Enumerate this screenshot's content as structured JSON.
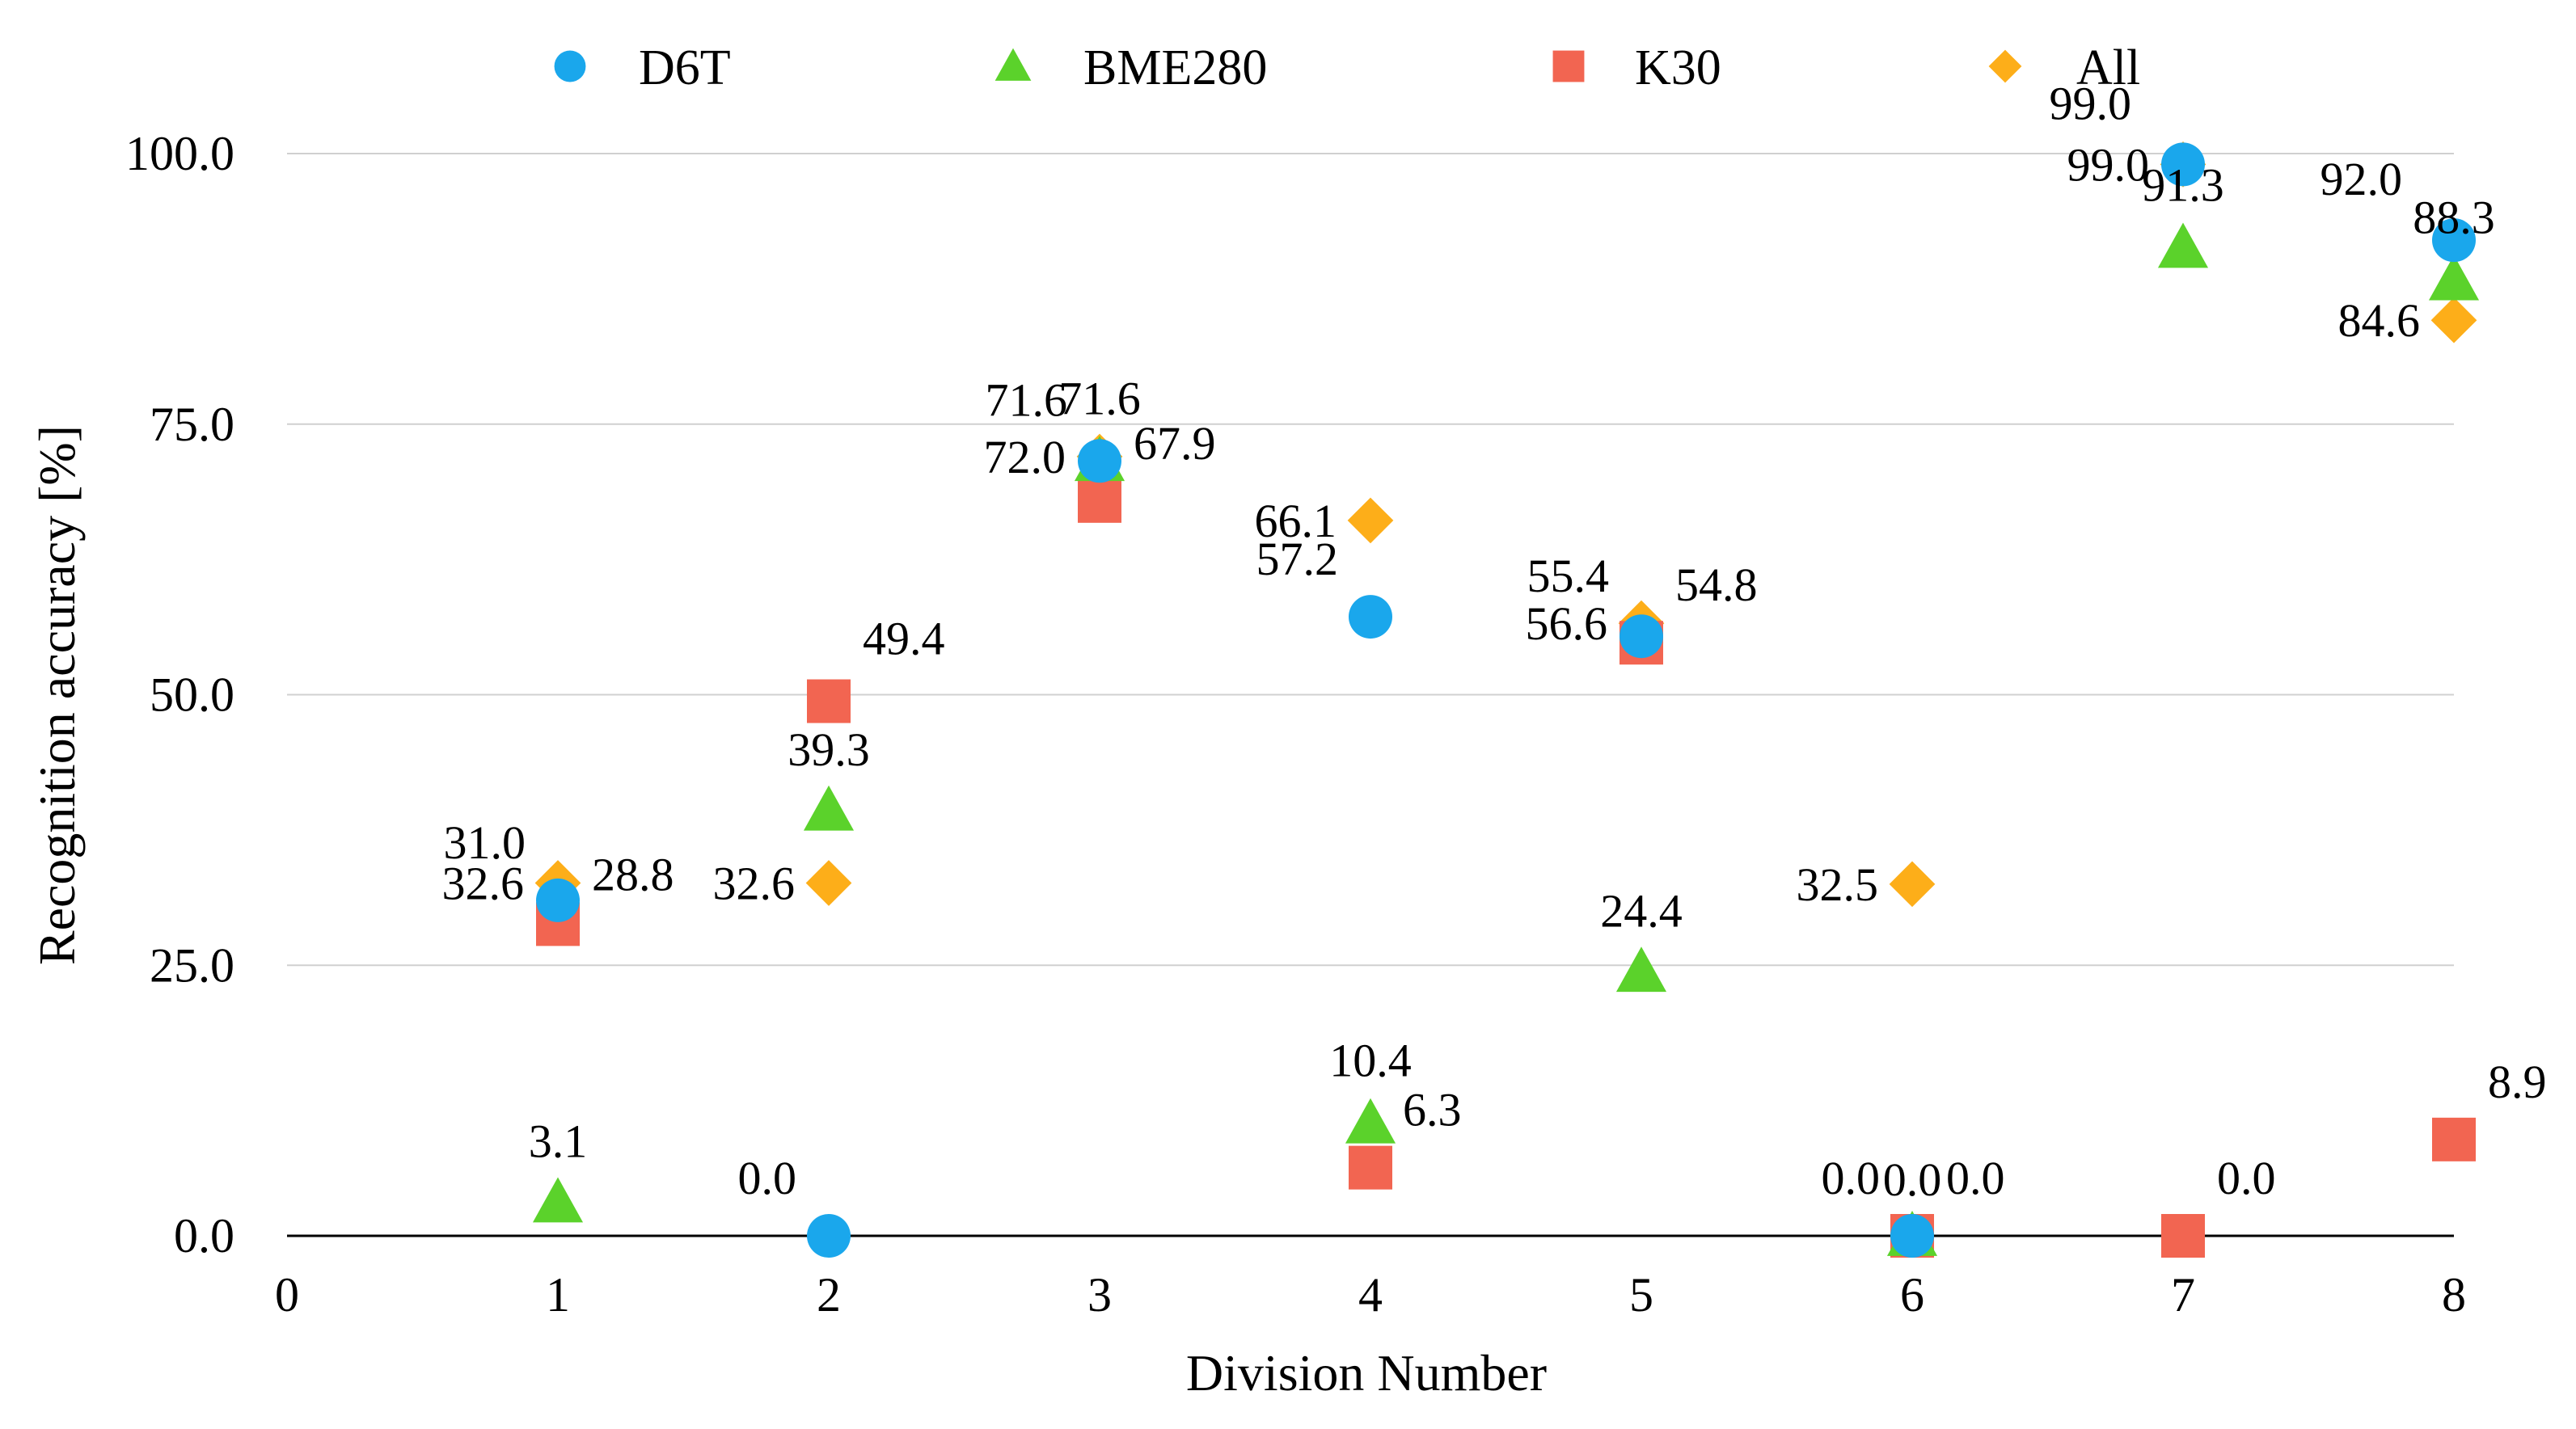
{
  "chart_data": {
    "type": "scatter",
    "title": "",
    "xlabel": "Division Number",
    "ylabel": "Recognition accuracy [%]",
    "xlim": [
      0,
      8
    ],
    "ylim": [
      0,
      100
    ],
    "x_ticks": [
      "0",
      "1",
      "2",
      "3",
      "4",
      "5",
      "6",
      "7",
      "8"
    ],
    "y_ticks": [
      "0.0",
      "25.0",
      "50.0",
      "75.0",
      "100.0"
    ],
    "grid": "horizontal",
    "legend_position": "top",
    "series": [
      {
        "name": "D6T",
        "marker": "circle",
        "color": "#1AA7EC",
        "points": [
          {
            "x": 1,
            "y": 31.0
          },
          {
            "x": 2,
            "y": 0.0
          },
          {
            "x": 3,
            "y": 71.6
          },
          {
            "x": 4,
            "y": 57.2
          },
          {
            "x": 5,
            "y": 55.4
          },
          {
            "x": 6,
            "y": 0.0
          },
          {
            "x": 7,
            "y": 99.0
          },
          {
            "x": 8,
            "y": 92.0
          }
        ]
      },
      {
        "name": "BME280",
        "marker": "triangle",
        "color": "#5BD22B",
        "points": [
          {
            "x": 1,
            "y": 3.1
          },
          {
            "x": 2,
            "y": 39.3
          },
          {
            "x": 3,
            "y": 71.6
          },
          {
            "x": 4,
            "y": 10.4
          },
          {
            "x": 5,
            "y": 24.4
          },
          {
            "x": 6,
            "y": 0.0
          },
          {
            "x": 7,
            "y": 91.3
          },
          {
            "x": 8,
            "y": 88.3
          }
        ]
      },
      {
        "name": "K30",
        "marker": "square",
        "color": "#F26551",
        "points": [
          {
            "x": 1,
            "y": 28.8
          },
          {
            "x": 2,
            "y": 49.4
          },
          {
            "x": 3,
            "y": 67.9
          },
          {
            "x": 4,
            "y": 6.3
          },
          {
            "x": 5,
            "y": 54.8
          },
          {
            "x": 6,
            "y": 0.0
          },
          {
            "x": 7,
            "y": 0.0
          },
          {
            "x": 8,
            "y": 8.9
          }
        ]
      },
      {
        "name": "All",
        "marker": "diamond",
        "color": "#FDAE19",
        "points": [
          {
            "x": 1,
            "y": 32.6
          },
          {
            "x": 2,
            "y": 32.6
          },
          {
            "x": 3,
            "y": 72.0
          },
          {
            "x": 4,
            "y": 66.1
          },
          {
            "x": 5,
            "y": 56.6
          },
          {
            "x": 6,
            "y": 32.5
          },
          {
            "x": 7,
            "y": 99.0
          },
          {
            "x": 8,
            "y": 84.6
          }
        ]
      }
    ],
    "data_labels": [
      {
        "series": "D6T",
        "x": 1,
        "text": "31.0"
      },
      {
        "series": "D6T",
        "x": 2,
        "text": "0.0"
      },
      {
        "series": "D6T",
        "x": 3,
        "text": "71.6"
      },
      {
        "series": "D6T",
        "x": 4,
        "text": "57.2"
      },
      {
        "series": "D6T",
        "x": 5,
        "text": "55.4"
      },
      {
        "series": "D6T",
        "x": 6,
        "text": "0.0"
      },
      {
        "series": "D6T",
        "x": 7,
        "text": "99.0"
      },
      {
        "series": "D6T",
        "x": 8,
        "text": "92.0"
      },
      {
        "series": "BME280",
        "x": 1,
        "text": "3.1"
      },
      {
        "series": "BME280",
        "x": 2,
        "text": "39.3"
      },
      {
        "series": "BME280",
        "x": 3,
        "text": "71.6"
      },
      {
        "series": "BME280",
        "x": 4,
        "text": "10.4"
      },
      {
        "series": "BME280",
        "x": 5,
        "text": "24.4"
      },
      {
        "series": "BME280",
        "x": 6,
        "text": "0.0"
      },
      {
        "series": "BME280",
        "x": 7,
        "text": "91.3"
      },
      {
        "series": "BME280",
        "x": 8,
        "text": "88.3"
      },
      {
        "series": "K30",
        "x": 1,
        "text": "28.8"
      },
      {
        "series": "K30",
        "x": 2,
        "text": "49.4"
      },
      {
        "series": "K30",
        "x": 3,
        "text": "67.9"
      },
      {
        "series": "K30",
        "x": 4,
        "text": "6.3"
      },
      {
        "series": "K30",
        "x": 5,
        "text": "54.8"
      },
      {
        "series": "K30",
        "x": 6,
        "text": "0.0"
      },
      {
        "series": "K30",
        "x": 7,
        "text": "0.0"
      },
      {
        "series": "K30",
        "x": 8,
        "text": "8.9"
      },
      {
        "series": "All",
        "x": 1,
        "text": "32.6"
      },
      {
        "series": "All",
        "x": 2,
        "text": "32.6"
      },
      {
        "series": "All",
        "x": 3,
        "text": "72.0"
      },
      {
        "series": "All",
        "x": 4,
        "text": "66.1"
      },
      {
        "series": "All",
        "x": 5,
        "text": "56.6"
      },
      {
        "series": "All",
        "x": 6,
        "text": "32.5"
      },
      {
        "series": "All",
        "x": 7,
        "text": "99.0"
      },
      {
        "series": "All",
        "x": 8,
        "text": "84.6"
      }
    ]
  }
}
